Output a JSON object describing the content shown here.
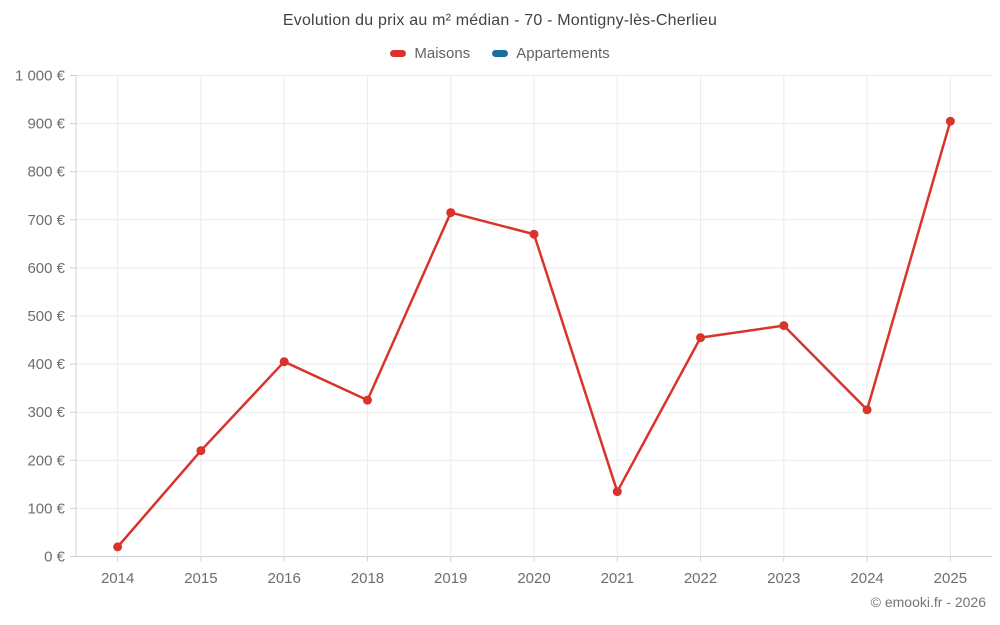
{
  "header": {
    "title": "Evolution du prix au m² médian - 70 - Montigny-lès-Cherlieu"
  },
  "legend": {
    "items": [
      {
        "label": "Maisons",
        "color": "#d9342c"
      },
      {
        "label": "Appartements",
        "color": "#1a6e9c"
      }
    ]
  },
  "footer": {
    "copyright": "© emooki.fr - 2026"
  },
  "chart_data": {
    "type": "line",
    "title": "Evolution du prix au m² médian - 70 - Montigny-lès-Cherlieu",
    "categories": [
      "2014",
      "2015",
      "2016",
      "2018",
      "2019",
      "2020",
      "2021",
      "2022",
      "2023",
      "2024",
      "2025"
    ],
    "series": [
      {
        "name": "Maisons",
        "color": "#d9342c",
        "values": [
          20,
          220,
          405,
          325,
          715,
          670,
          135,
          455,
          480,
          305,
          905
        ]
      },
      {
        "name": "Appartements",
        "color": "#1a6e9c",
        "values": []
      }
    ],
    "xlabel": "",
    "ylabel": "",
    "ylim": [
      0,
      1000
    ],
    "y_tick_step": 100,
    "y_tick_suffix": " €",
    "grid": true,
    "legend_position": "top",
    "axis_label_color": "#6e6e6e",
    "grid_color": "#ebebeb",
    "axis_line_color": "#ccd0d4",
    "annotations": [
      "© emooki.fr - 2026"
    ]
  }
}
